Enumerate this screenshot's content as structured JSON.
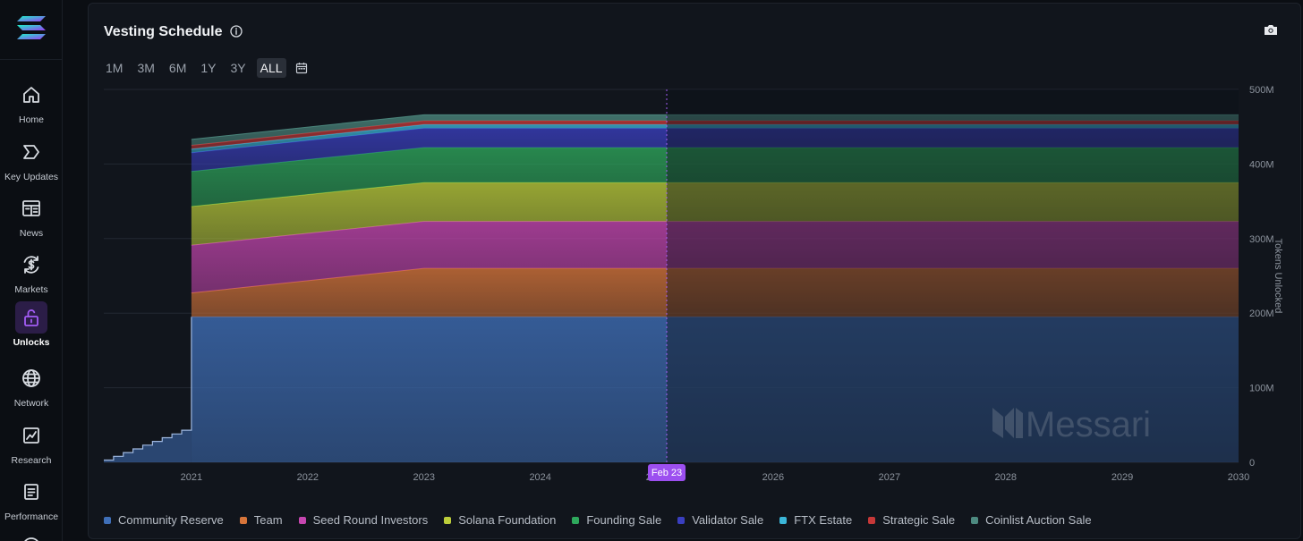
{
  "sidebar": {
    "items": [
      {
        "label": "Home",
        "icon": "home-icon"
      },
      {
        "label": "Key Updates",
        "icon": "chevron-tag-icon"
      },
      {
        "label": "News",
        "icon": "newspaper-icon"
      },
      {
        "label": "Markets",
        "icon": "dollar-cycle-icon"
      },
      {
        "label": "Unlocks",
        "icon": "unlock-icon"
      },
      {
        "label": "Network",
        "icon": "globe-icon"
      },
      {
        "label": "Research",
        "icon": "chart-line-icon"
      },
      {
        "label": "Performance",
        "icon": "document-icon"
      }
    ],
    "active": "Unlocks"
  },
  "panel": {
    "title": "Vesting Schedule",
    "ranges": [
      "1M",
      "3M",
      "6M",
      "1Y",
      "3Y",
      "ALL"
    ],
    "active_range": "ALL",
    "watermark": "Messari"
  },
  "chart_data": {
    "type": "area",
    "stacked": true,
    "ylabel": "Tokens Unlocked",
    "y_ticks": [
      "0",
      "100M",
      "200M",
      "300M",
      "400M",
      "500M"
    ],
    "ylim": [
      0,
      500
    ],
    "y_unit": "M tokens",
    "x_ticks": [
      "2021",
      "2022",
      "2023",
      "2024",
      "2025",
      "2026",
      "2027",
      "2028",
      "2029",
      "2030"
    ],
    "xlim": [
      "2020-04-01",
      "2030-01-01"
    ],
    "today_marker": "Feb 23",
    "x": [
      "2020-04-01",
      "2021-01-01",
      "2023-01-01",
      "2025-02-01",
      "2030-01-01"
    ],
    "series": [
      {
        "name": "Community Reserve",
        "color": "#3f6fb8",
        "values": [
          3,
          195,
          195,
          195,
          195
        ]
      },
      {
        "name": "Team",
        "color": "#d7753a",
        "values": [
          0,
          32,
          65,
          65,
          65
        ]
      },
      {
        "name": "Seed Round Investors",
        "color": "#c646b0",
        "values": [
          0,
          64,
          63,
          63,
          63
        ]
      },
      {
        "name": "Solana Foundation",
        "color": "#bccd3a",
        "values": [
          0,
          52,
          52,
          52,
          52
        ]
      },
      {
        "name": "Founding Sale",
        "color": "#2ea85c",
        "values": [
          0,
          47,
          47,
          47,
          47
        ]
      },
      {
        "name": "Validator Sale",
        "color": "#3a3fc0",
        "values": [
          0,
          25,
          26,
          26,
          26
        ]
      },
      {
        "name": "FTX Estate",
        "color": "#3bb6d8",
        "values": [
          0,
          5,
          5,
          5,
          5
        ]
      },
      {
        "name": "Strategic Sale",
        "color": "#c63838",
        "values": [
          0,
          5,
          5,
          5,
          5
        ]
      },
      {
        "name": "Coinlist Auction Sale",
        "color": "#4d8a80",
        "values": [
          0,
          8,
          8,
          8,
          8
        ]
      }
    ]
  }
}
